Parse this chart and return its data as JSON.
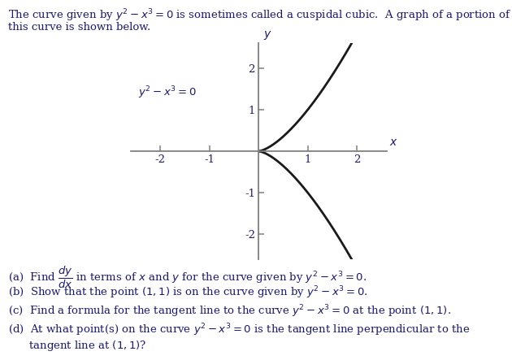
{
  "title_line1": "The curve given by $y^2 - x^3 = 0$ is sometimes called a cuspidal cubic.  A graph of a portion of",
  "title_line2": "this curve is shown below.",
  "curve_label": "$y^2 - x^3 = 0$",
  "xlabel": "$x$",
  "ylabel": "$y$",
  "xlim": [
    -2.6,
    2.6
  ],
  "ylim": [
    -2.6,
    2.6
  ],
  "xticks": [
    -2,
    -1,
    1,
    2
  ],
  "yticks": [
    -2,
    -1,
    1,
    2
  ],
  "question_a": "(a)  Find $\\dfrac{dy}{dx}$ in terms of $x$ and $y$ for the curve given by $y^2 - x^3 = 0$.",
  "question_b": "(b)  Show that the point $(1, 1)$ is on the curve given by $y^2 - x^3 = 0$.",
  "question_c": "(c)  Find a formula for the tangent line to the curve $y^2 - x^3 = 0$ at the point $(1, 1)$.",
  "question_d1": "(d)  At what point(s) on the curve $y^2 - x^3 = 0$ is the tangent line perpendicular to the",
  "question_d2": "      tangent line at $(1, 1)$?",
  "curve_color": "#1a1a1a",
  "axis_color": "#808080",
  "text_color": "#1a1875",
  "title_color": "#1a1875",
  "bg_color": "#ffffff",
  "font_size": 9.5
}
